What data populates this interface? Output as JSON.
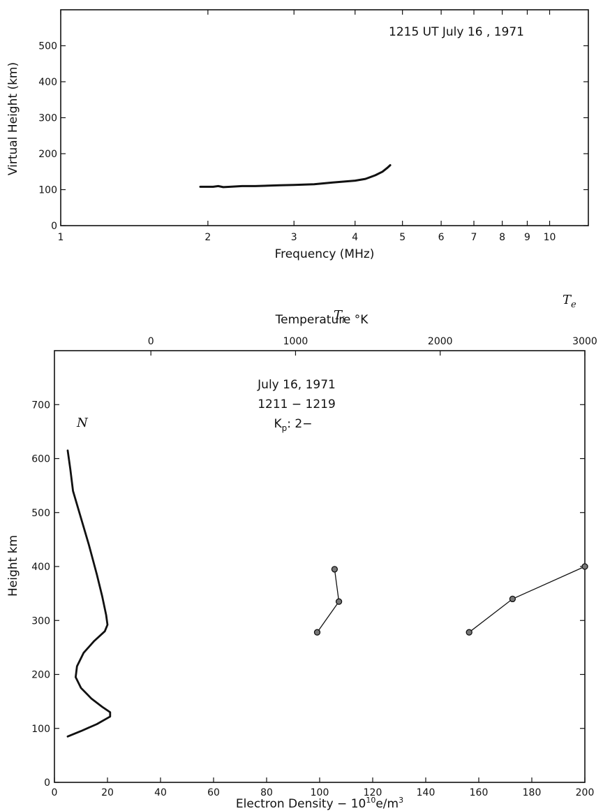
{
  "chart_data": [
    {
      "type": "line",
      "annotation": "1215 UT   July 16 , 1971",
      "xlabel": "Frequency (MHz)",
      "ylabel": "Virtual Height (km)",
      "xscale": "log",
      "xlim": [
        1,
        12
      ],
      "ylim": [
        0,
        600
      ],
      "x_ticks": [
        1,
        2,
        3,
        4,
        5,
        6,
        7,
        8,
        9,
        10
      ],
      "y_ticks": [
        0,
        100,
        200,
        300,
        400,
        500
      ],
      "series": [
        {
          "points": [
            [
              1.93,
              108
            ],
            [
              2.05,
              108
            ],
            [
              2.1,
              110
            ],
            [
              2.15,
              107
            ],
            [
              2.22,
              108
            ],
            [
              2.35,
              110
            ],
            [
              2.5,
              110
            ],
            [
              2.8,
              112
            ],
            [
              3.0,
              113
            ],
            [
              3.3,
              115
            ],
            [
              3.6,
              120
            ],
            [
              4.0,
              125
            ],
            [
              4.2,
              130
            ],
            [
              4.4,
              140
            ],
            [
              4.55,
              150
            ],
            [
              4.65,
              160
            ],
            [
              4.72,
              168
            ]
          ]
        }
      ]
    },
    {
      "type": "line",
      "annotation_lines": [
        "July 16, 1971",
        "1211  −  1219",
        "K",
        "p",
        ": 2−"
      ],
      "xlabel_parts": [
        "Electron  Density  −  10",
        "10",
        "e/m",
        "3"
      ],
      "x2label": "Temperature °K",
      "ylabel": "Height  km",
      "xlim": [
        0,
        200
      ],
      "ylim": [
        0,
        800
      ],
      "x2lim": [
        -666.7,
        3000
      ],
      "x_ticks": [
        0,
        20,
        40,
        60,
        80,
        100,
        120,
        140,
        160,
        180,
        200
      ],
      "x2_ticks": [
        0,
        1000,
        2000,
        3000
      ],
      "y_ticks": [
        0,
        100,
        200,
        300,
        400,
        500,
        600,
        700
      ],
      "series": [
        {
          "name": "N",
          "axis": "bottom",
          "points": [
            [
              5,
              85
            ],
            [
              10,
              95
            ],
            [
              16,
              108
            ],
            [
              21,
              122
            ],
            [
              21,
              130
            ],
            [
              18,
              140
            ],
            [
              14,
              155
            ],
            [
              10,
              175
            ],
            [
              8,
              195
            ],
            [
              8.5,
              215
            ],
            [
              11,
              240
            ],
            [
              15,
              262
            ],
            [
              19,
              280
            ],
            [
              20,
              292
            ],
            [
              19.5,
              310
            ],
            [
              18,
              345
            ],
            [
              16,
              385
            ],
            [
              13,
              440
            ],
            [
              10,
              490
            ],
            [
              7,
              540
            ],
            [
              6,
              580
            ],
            [
              5,
              615
            ]
          ]
        },
        {
          "name": "T",
          "subscript": "i",
          "axis": "top",
          "points": [
            [
              1150,
              278
            ],
            [
              1300,
              335
            ],
            [
              1270,
              395
            ]
          ]
        },
        {
          "name": "T",
          "subscript": "e",
          "axis": "top",
          "points": [
            [
              2200,
              278
            ],
            [
              2500,
              340
            ],
            [
              3000,
              400
            ]
          ]
        }
      ]
    }
  ]
}
